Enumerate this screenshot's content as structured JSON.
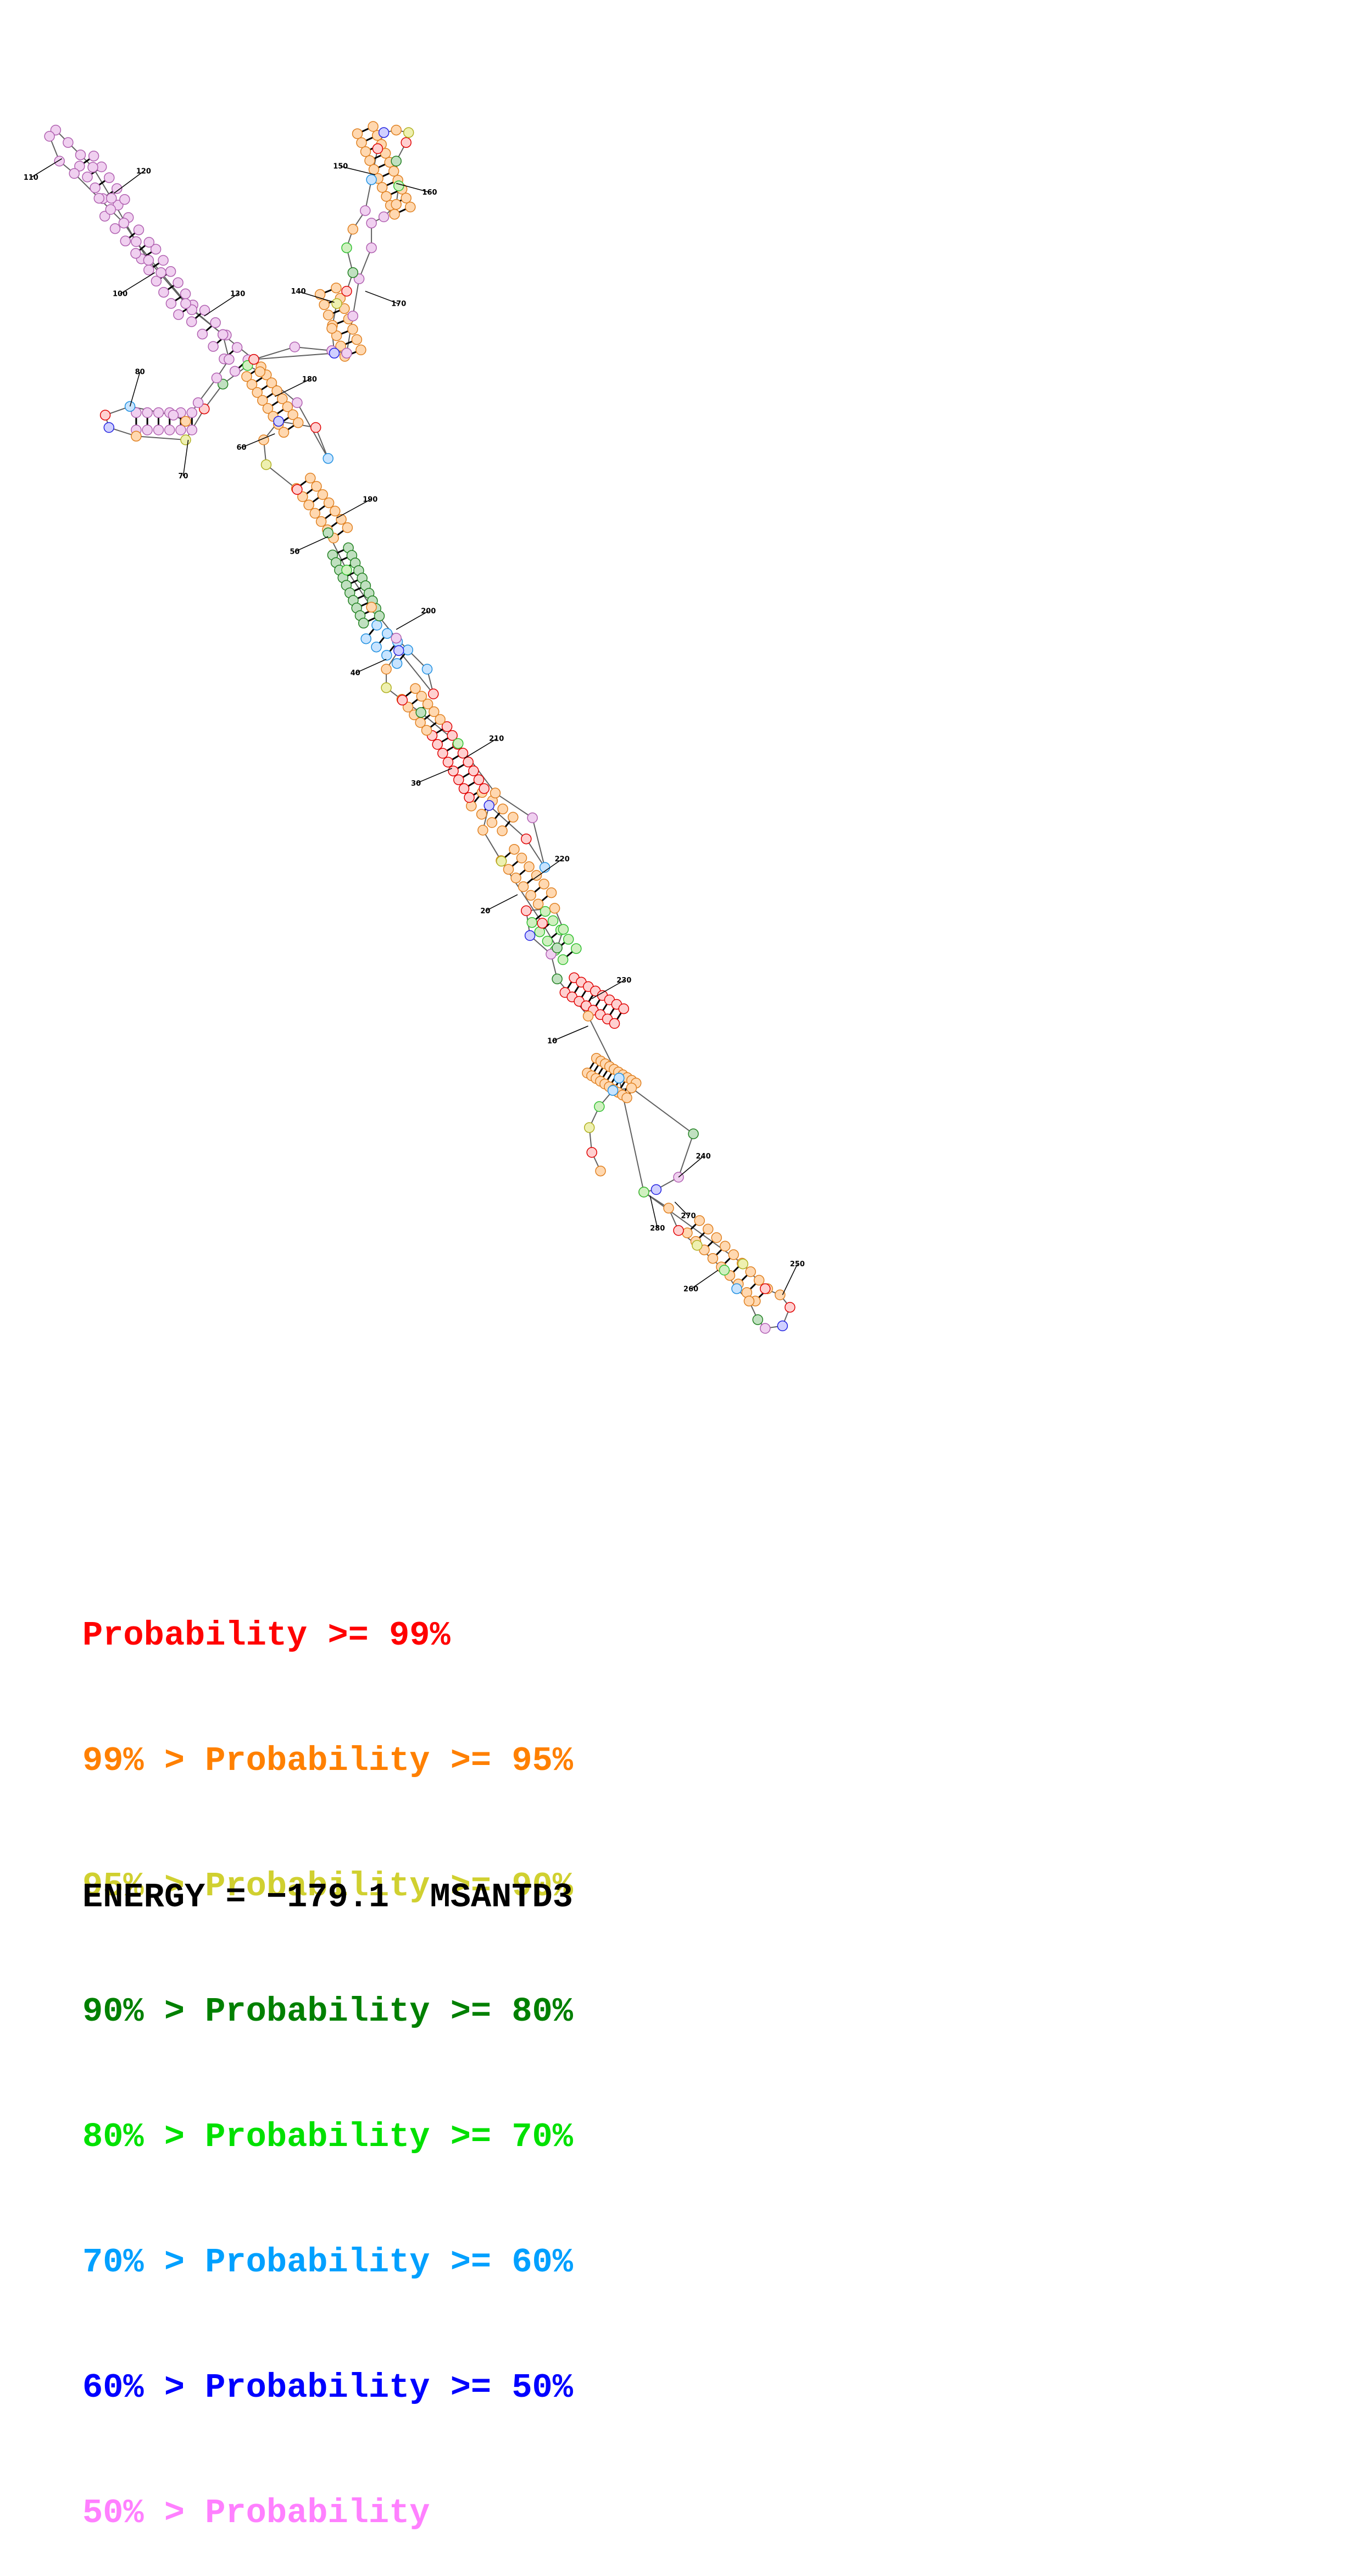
{
  "diagram": {
    "type": "rna-secondary-structure",
    "position_labels": [
      "10",
      "20",
      "30",
      "40",
      "50",
      "60",
      "70",
      "80",
      "100",
      "110",
      "120",
      "130",
      "140",
      "150",
      "160",
      "170",
      "180",
      "190",
      "200",
      "210",
      "220",
      "230",
      "240",
      "250",
      "260",
      "270",
      "280"
    ]
  },
  "legend": {
    "rows": [
      {
        "prefix": "",
        "text": "Probability >= 99%",
        "color": "#ff0000"
      },
      {
        "prefix": "99% > ",
        "text": "Probability >= 95%",
        "color": "#ff8000"
      },
      {
        "prefix": "95% > ",
        "text": "Probability >= 90%",
        "color": "#d0d030"
      },
      {
        "prefix": "90% > ",
        "text": "Probability >= 80%",
        "color": "#008000"
      },
      {
        "prefix": "80% > ",
        "text": "Probability >= 70%",
        "color": "#00e000"
      },
      {
        "prefix": "70% > ",
        "text": "Probability >= 60%",
        "color": "#00a0ff"
      },
      {
        "prefix": "60% > ",
        "text": "Probability >= 50%",
        "color": "#0000ff"
      },
      {
        "prefix": "50% > ",
        "text": "Probability",
        "color": "#ff80ff"
      }
    ]
  },
  "energy": {
    "label": "ENERGY = ",
    "value": "−179.1",
    "gene": "MSANTD3"
  }
}
